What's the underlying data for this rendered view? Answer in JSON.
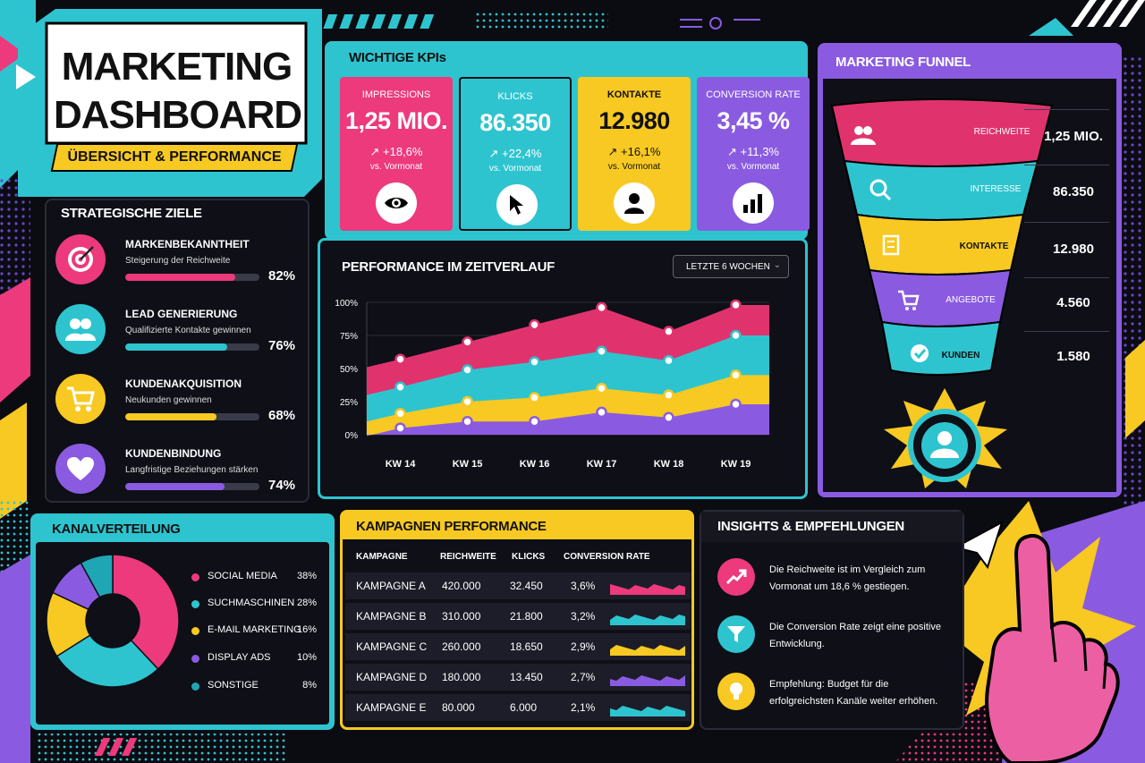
{
  "header": {
    "title_line1": "MARKETING",
    "title_line2": "DASHBOARD",
    "subtitle": "ÜBERSICHT & PERFORMANCE"
  },
  "kpis": {
    "title": "WICHTIGE KPIs",
    "cards": [
      {
        "label": "IMPRESSIONS",
        "value": "1,25 MIO.",
        "change": "↗ +18,6%",
        "sub": "vs. Vormonat",
        "color": "#ec3a7c",
        "icon": "eye-icon"
      },
      {
        "label": "KLICKS",
        "value": "86.350",
        "change": "↗ +22,4%",
        "sub": "vs. Vormonat",
        "color": "#2ec4cf",
        "icon": "cursor-icon"
      },
      {
        "label": "KONTAKTE",
        "value": "12.980",
        "change": "↗ +16,1%",
        "sub": "vs. Vormonat",
        "color": "#f7c922",
        "icon": "user-icon"
      },
      {
        "label": "CONVERSION RATE",
        "value": "3,45 %",
        "change": "↗ +11,3%",
        "sub": "vs. Vormonat",
        "color": "#8a5be0",
        "icon": "bar-chart-icon"
      }
    ]
  },
  "goals": {
    "title": "STRATEGISCHE ZIELE",
    "items": [
      {
        "title": "MARKENBEKANNTHEIT",
        "sub": "Steigerung der Reichweite",
        "pct": "82%",
        "value": 0.82,
        "color": "#ec3a7c",
        "icon": "target-icon"
      },
      {
        "title": "LEAD GENERIERUNG",
        "sub": "Qualifizierte Kontakte gewinnen",
        "pct": "76%",
        "value": 0.76,
        "color": "#2ec4cf",
        "icon": "users-icon"
      },
      {
        "title": "KUNDENAKQUISITION",
        "sub": "Neukunden gewinnen",
        "pct": "68%",
        "value": 0.68,
        "color": "#f7c922",
        "icon": "cart-icon"
      },
      {
        "title": "KUNDENBINDUNG",
        "sub": "Langfristige Beziehungen stärken",
        "pct": "74%",
        "value": 0.74,
        "color": "#8a5be0",
        "icon": "heart-icon"
      }
    ]
  },
  "performance": {
    "title": "PERFORMANCE IM ZEITVERLAUF",
    "filter": "LETZTE 6 WOCHEN"
  },
  "chart_data": [
    {
      "type": "area",
      "title": "PERFORMANCE IM ZEITVERLAUF",
      "x": [
        "KW 14",
        "KW 15",
        "KW 16",
        "KW 17",
        "KW 18",
        "KW 19"
      ],
      "yticks": [
        "100%",
        "75%",
        "50%",
        "25%",
        "0%"
      ],
      "ylim": [
        0,
        100
      ],
      "series": [
        {
          "values": [
            57,
            70,
            83,
            96,
            78,
            98
          ],
          "color": "#e0336e"
        },
        {
          "values": [
            36,
            49,
            55,
            63,
            56,
            75
          ],
          "color": "#2ec4cf"
        },
        {
          "values": [
            16,
            25,
            28,
            35,
            30,
            45
          ],
          "color": "#f7c922"
        },
        {
          "values": [
            5,
            10,
            10,
            17,
            13,
            23
          ],
          "color": "#8a5be0"
        }
      ]
    },
    {
      "type": "pie",
      "title": "KANALVERTEILUNG",
      "labels": [
        "SOCIAL MEDIA",
        "SUCHMASCHINEN",
        "E-MAIL MARKETING",
        "DISPLAY ADS",
        "SONSTIGE"
      ],
      "pct_labels": [
        "38%",
        "28%",
        "16%",
        "10%",
        "8%"
      ],
      "values": [
        38,
        28,
        16,
        10,
        8
      ],
      "colors": [
        "#ec3a7c",
        "#2ec4cf",
        "#f7c922",
        "#8a5be0",
        "#1fa6b4"
      ]
    }
  ],
  "funnel": {
    "title": "MARKETING FUNNEL",
    "stages": [
      {
        "label": "REICHWEITE",
        "value": "1,25 MIO.",
        "color": "#e0336e",
        "icon": "users-icon"
      },
      {
        "label": "INTERESSE",
        "value": "86.350",
        "color": "#2ec4cf",
        "icon": "search-icon"
      },
      {
        "label": "KONTAKTE",
        "value": "12.980",
        "color": "#f7c922",
        "icon": "document-icon"
      },
      {
        "label": "ANGEBOTE",
        "value": "4.560",
        "color": "#8a5be0",
        "icon": "cart-icon"
      },
      {
        "label": "KUNDEN",
        "value": "1.580",
        "color": "#2ec4cf",
        "icon": "check-icon"
      }
    ]
  },
  "campaigns": {
    "title": "KAMPAGNEN PERFORMANCE",
    "headers": [
      "KAMPAGNE",
      "REICHWEITE",
      "KLICKS",
      "CONVERSION RATE"
    ],
    "rows": [
      {
        "name": "KAMPAGNE A",
        "reach": "420.000",
        "clicks": "32.450",
        "cr": "3,6%",
        "color": "#ec3a7c"
      },
      {
        "name": "KAMPAGNE B",
        "reach": "310.000",
        "clicks": "21.800",
        "cr": "3,2%",
        "color": "#2ec4cf"
      },
      {
        "name": "KAMPAGNE C",
        "reach": "260.000",
        "clicks": "18.650",
        "cr": "2,9%",
        "color": "#f7c922"
      },
      {
        "name": "KAMPAGNE D",
        "reach": "180.000",
        "clicks": "13.450",
        "cr": "2,7%",
        "color": "#8a5be0"
      },
      {
        "name": "KAMPAGNE E",
        "reach": "80.000",
        "clicks": "6.000",
        "cr": "2,1%",
        "color": "#2ec4cf"
      }
    ]
  },
  "insights": {
    "title": "INSIGHTS & EMPFEHLUNGEN",
    "items": [
      {
        "text": "Die Reichweite ist im Vergleich zum Vormonat um 18,6 % gestiegen.",
        "color": "#ec3a7c",
        "icon": "trend-up-icon"
      },
      {
        "text": "Die Conversion Rate zeigt eine positive Entwicklung.",
        "color": "#2ec4cf",
        "icon": "filter-icon"
      },
      {
        "text": "Empfehlung: Budget für die erfolgreichsten Kanäle weiter erhöhen.",
        "color": "#f7c922",
        "icon": "lightbulb-icon"
      }
    ]
  }
}
